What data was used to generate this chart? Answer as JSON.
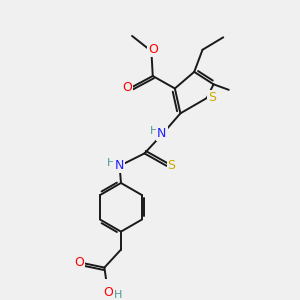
{
  "background_color": "#f0f0f0",
  "bond_color": "#1a1a1a",
  "colors": {
    "O": "#ff0000",
    "N": "#2020ff",
    "S_thio": "#ccaa00",
    "S_thiourea": "#ccaa00",
    "C": "#1a1a1a",
    "H": "#4a9a9a"
  },
  "figsize": [
    3.0,
    3.0
  ],
  "dpi": 100
}
